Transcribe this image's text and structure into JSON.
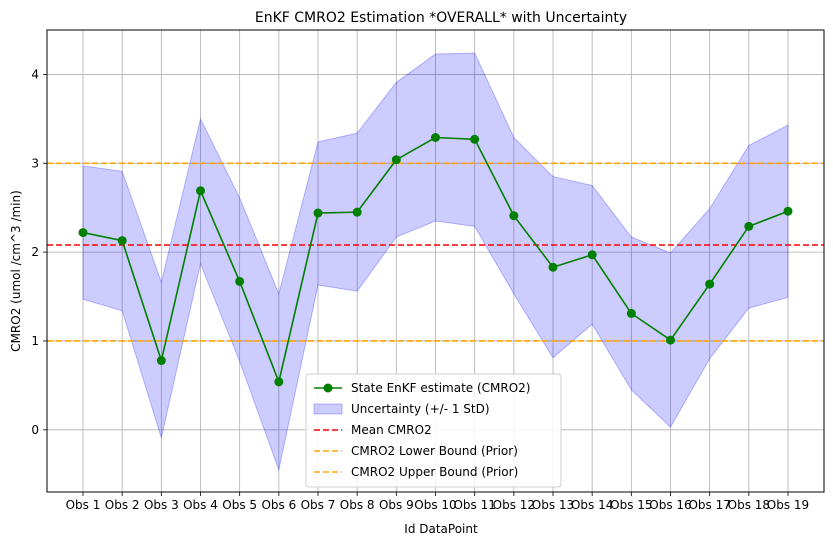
{
  "chart_data": {
    "type": "line",
    "title": "EnKF CMRO2 Estimation *OVERALL* with Uncertainty",
    "xlabel": "Id DataPoint",
    "ylabel": "CMRO2 (umol /cm^3 /min)",
    "categories": [
      "Obs 1",
      "Obs 2",
      "Obs 3",
      "Obs 4",
      "Obs 5",
      "Obs 6",
      "Obs 7",
      "Obs 8",
      "Obs 9",
      "Obs 10",
      "Obs 11",
      "Obs 12",
      "Obs 13",
      "Obs 14",
      "Obs 15",
      "Obs 16",
      "Obs 17",
      "Obs 18",
      "Obs 19"
    ],
    "ylim": [
      -0.7,
      4.5
    ],
    "yticks": [
      0,
      1,
      2,
      3,
      4
    ],
    "ytick_labels": [
      "0",
      "1",
      "2",
      "3",
      "4"
    ],
    "grid": true,
    "legend_position": "lower-center",
    "series": [
      {
        "name": "State EnKF estimate (CMRO2)",
        "color": "#008000",
        "marker": "circle",
        "values": [
          2.22,
          2.13,
          0.78,
          2.69,
          1.67,
          0.54,
          2.44,
          2.45,
          3.04,
          3.29,
          3.27,
          2.41,
          1.83,
          1.97,
          1.31,
          1.01,
          1.64,
          2.29,
          2.46
        ]
      }
    ],
    "band": {
      "name": "Uncertainty (+/- 1 StD)",
      "color": "#0000ff",
      "opacity": 0.2,
      "lower": [
        1.47,
        1.34,
        -0.09,
        1.87,
        0.77,
        -0.45,
        1.63,
        1.56,
        2.17,
        2.35,
        2.29,
        1.53,
        0.81,
        1.19,
        0.45,
        0.03,
        0.8,
        1.37,
        1.49
      ],
      "upper": [
        2.97,
        2.91,
        1.66,
        3.5,
        2.61,
        1.53,
        3.24,
        3.34,
        3.91,
        4.23,
        4.24,
        3.29,
        2.85,
        2.75,
        2.17,
        1.99,
        2.49,
        3.2,
        3.43
      ]
    },
    "hlines": [
      {
        "name": "Mean CMRO2",
        "value": 2.08,
        "color": "#ff0000"
      },
      {
        "name": "CMRO2 Lower Bound (Prior)",
        "value": 1.0,
        "color": "#ffa500"
      },
      {
        "name": "CMRO2 Upper Bound (Prior)",
        "value": 3.0,
        "color": "#ffa500"
      }
    ]
  }
}
